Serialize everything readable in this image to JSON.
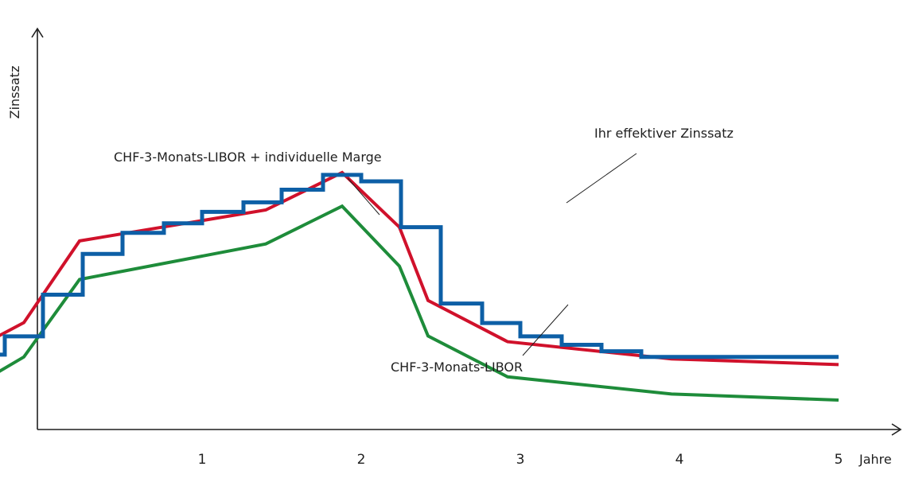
{
  "chart_data": {
    "type": "line",
    "xlabel": "Jahre",
    "ylabel": "Zinssatz",
    "x_ticks": [
      "1",
      "2",
      "3",
      "4",
      "5"
    ],
    "xlim": [
      -1.02,
      5.0
    ],
    "ylim": [
      0,
      10
    ],
    "grid": false,
    "series": [
      {
        "name": "CHF-3-Monats-LIBOR",
        "color": "#1e8c3a",
        "style": "line",
        "x": [
          -1.0,
          -0.5,
          -0.12,
          0.23,
          1.4,
          1.88,
          2.24,
          2.42,
          2.92,
          3.95,
          5.0
        ],
        "y": [
          0.97,
          0.97,
          1.9,
          3.93,
          4.86,
          5.85,
          4.28,
          2.45,
          1.38,
          0.93,
          0.77
        ]
      },
      {
        "name": "CHF-3-Monats-LIBOR + individuelle Marge",
        "color": "#d0112b",
        "style": "line",
        "x": [
          -1.0,
          -0.5,
          -0.12,
          0.23,
          1.4,
          1.88,
          2.24,
          2.42,
          2.92,
          3.95,
          5.0
        ],
        "y": [
          1.96,
          1.96,
          2.8,
          4.94,
          5.75,
          6.73,
          5.3,
          3.38,
          2.3,
          1.85,
          1.7
        ]
      },
      {
        "name": "Ihr effektiver Zinssatz",
        "color": "#0d5fa6",
        "style": "step",
        "x": [
          -1.0,
          -0.24,
          0.0,
          0.25,
          0.5,
          0.76,
          1.0,
          1.26,
          1.5,
          1.76,
          2.0,
          2.25,
          2.5,
          2.76,
          3.0,
          3.26,
          3.51,
          3.76,
          4.02,
          4.25,
          4.52,
          4.75,
          5.0
        ],
        "y": [
          1.96,
          2.44,
          3.53,
          4.6,
          5.15,
          5.4,
          5.7,
          5.95,
          6.28,
          6.67,
          6.5,
          5.3,
          3.3,
          2.79,
          2.44,
          2.22,
          2.05,
          1.9,
          1.9,
          1.9,
          1.9,
          1.9,
          1.9
        ]
      }
    ],
    "annotations": [
      {
        "text": "Ihr effektiver Zinssatz",
        "target": "Ihr effektiver Zinssatz"
      },
      {
        "text": "CHF-3-Monats-LIBOR + individuelle Marge",
        "target": "CHF-3-Monats-LIBOR + individuelle Marge"
      },
      {
        "text": "CHF-3-Monats-LIBOR",
        "target": "CHF-3-Monats-LIBOR"
      }
    ]
  }
}
